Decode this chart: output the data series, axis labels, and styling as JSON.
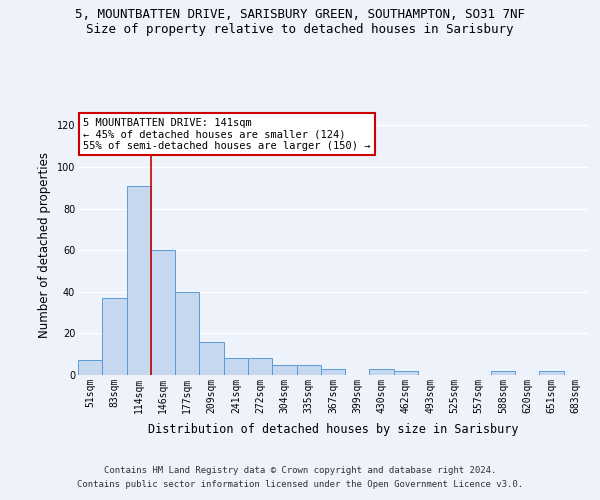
{
  "title_line1": "5, MOUNTBATTEN DRIVE, SARISBURY GREEN, SOUTHAMPTON, SO31 7NF",
  "title_line2": "Size of property relative to detached houses in Sarisbury",
  "xlabel": "Distribution of detached houses by size in Sarisbury",
  "ylabel": "Number of detached properties",
  "categories": [
    "51sqm",
    "83sqm",
    "114sqm",
    "146sqm",
    "177sqm",
    "209sqm",
    "241sqm",
    "272sqm",
    "304sqm",
    "335sqm",
    "367sqm",
    "399sqm",
    "430sqm",
    "462sqm",
    "493sqm",
    "525sqm",
    "557sqm",
    "588sqm",
    "620sqm",
    "651sqm",
    "683sqm"
  ],
  "values": [
    7,
    37,
    91,
    60,
    40,
    16,
    8,
    8,
    5,
    5,
    3,
    0,
    3,
    2,
    0,
    0,
    0,
    2,
    0,
    2,
    0
  ],
  "bar_color": "#c5d8f0",
  "bar_edge_color": "#5b9bd5",
  "vline_x_index": 2,
  "vline_color": "#cc0000",
  "annotation_text": "5 MOUNTBATTEN DRIVE: 141sqm\n← 45% of detached houses are smaller (124)\n55% of semi-detached houses are larger (150) →",
  "annotation_box_color": "#ffffff",
  "annotation_box_edge": "#cc0000",
  "ylim": [
    0,
    125
  ],
  "yticks": [
    0,
    20,
    40,
    60,
    80,
    100,
    120
  ],
  "footer_line1": "Contains HM Land Registry data © Crown copyright and database right 2024.",
  "footer_line2": "Contains public sector information licensed under the Open Government Licence v3.0.",
  "bg_color": "#eef2fa",
  "plot_bg_color": "#eef2fa",
  "grid_color": "#ffffff",
  "title_fontsize": 9,
  "subtitle_fontsize": 9,
  "axis_label_fontsize": 8.5,
  "tick_fontsize": 7,
  "footer_fontsize": 6.5,
  "annotation_fontsize": 7.5
}
